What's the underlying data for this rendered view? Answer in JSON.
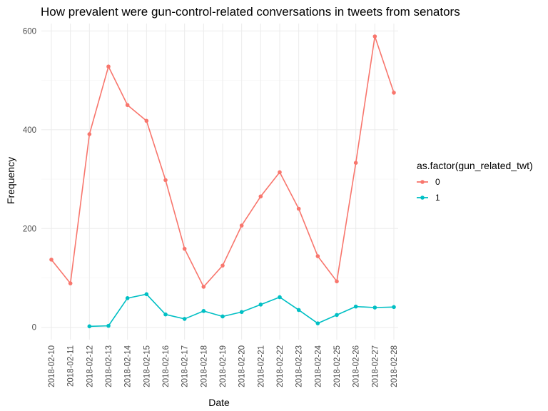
{
  "chart_data": {
    "type": "line",
    "title": "How prevalent were gun-control-related conversations in tweets from senators",
    "xlabel": "Date",
    "ylabel": "Frequency",
    "x": [
      "2018-02-10",
      "2018-02-11",
      "2018-02-12",
      "2018-02-13",
      "2018-02-14",
      "2018-02-15",
      "2018-02-16",
      "2018-02-17",
      "2018-02-18",
      "2018-02-19",
      "2018-02-20",
      "2018-02-21",
      "2018-02-22",
      "2018-02-23",
      "2018-02-24",
      "2018-02-25",
      "2018-02-26",
      "2018-02-27",
      "2018-02-28"
    ],
    "ylim": [
      -25,
      615
    ],
    "yticks": [
      0,
      200,
      400,
      600
    ],
    "grid": true,
    "legend": {
      "title": "as.factor(gun_related_twt)",
      "position": "right"
    },
    "series": [
      {
        "name": "0",
        "color": "#f8766d",
        "values": [
          137,
          89,
          391,
          528,
          450,
          418,
          298,
          159,
          82,
          125,
          206,
          265,
          314,
          240,
          144,
          93,
          333,
          589,
          475
        ]
      },
      {
        "name": "1",
        "color": "#00bfc4",
        "values": [
          null,
          null,
          2,
          3,
          59,
          67,
          26,
          17,
          33,
          22,
          31,
          46,
          61,
          35,
          8,
          25,
          42,
          40,
          41
        ]
      }
    ]
  }
}
